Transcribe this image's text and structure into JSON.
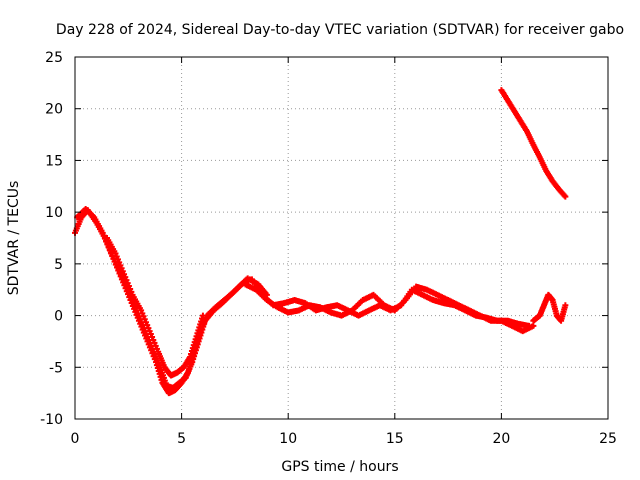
{
  "chart_data": {
    "type": "scatter",
    "title": "Day 228 of 2024, Sidereal Day-to-day VTEC variation (SDTVAR) for receiver gabo",
    "xlabel": "GPS time / hours",
    "ylabel": "SDTVAR / TECUs",
    "xlim": [
      0,
      25
    ],
    "ylim": [
      -10,
      25
    ],
    "xticks": [
      0,
      5,
      10,
      15,
      20,
      25
    ],
    "yticks": [
      -10,
      -5,
      0,
      5,
      10,
      15,
      20,
      25
    ],
    "grid": true,
    "legend": "none",
    "marker": "+",
    "series": [
      {
        "name": "satellite-track-1",
        "color": "#ff0000",
        "x": [
          0.0,
          0.3,
          0.6,
          1.0,
          1.4,
          1.8,
          2.2,
          2.6,
          3.0,
          3.4,
          3.8,
          4.1,
          4.4,
          4.7,
          5.0,
          5.3,
          5.6,
          5.9,
          6.2,
          6.6,
          7.0,
          7.4,
          7.8,
          8.2,
          8.6,
          9.0
        ],
        "y": [
          8.0,
          9.5,
          10.2,
          9.0,
          7.5,
          5.5,
          3.5,
          1.5,
          -0.5,
          -2.5,
          -4.5,
          -6.5,
          -7.5,
          -7.2,
          -6.5,
          -5.5,
          -3.5,
          -1.5,
          0.0,
          0.8,
          1.5,
          2.2,
          3.0,
          3.5,
          3.0,
          2.0
        ]
      },
      {
        "name": "satellite-track-2",
        "color": "#ff0000",
        "x": [
          0.1,
          0.5,
          0.9,
          1.3,
          1.7,
          2.1,
          2.5,
          2.9,
          3.3,
          3.7,
          4.0,
          4.3,
          4.6,
          4.9,
          5.2,
          5.5,
          5.8,
          6.1,
          6.5,
          6.9,
          7.3,
          7.7,
          8.1
        ],
        "y": [
          9.5,
          10.3,
          9.5,
          8.0,
          6.0,
          4.2,
          2.5,
          0.5,
          -1.5,
          -3.5,
          -5.0,
          -6.8,
          -7.0,
          -6.5,
          -6.0,
          -4.5,
          -2.5,
          -0.5,
          0.5,
          1.2,
          2.0,
          2.8,
          3.6
        ]
      },
      {
        "name": "satellite-track-3",
        "color": "#ff0000",
        "x": [
          1.5,
          1.9,
          2.3,
          2.7,
          3.1,
          3.5,
          3.9,
          4.2,
          4.5,
          4.8,
          5.1,
          5.4,
          5.7,
          6.0
        ],
        "y": [
          7.5,
          6.0,
          4.0,
          2.0,
          0.5,
          -1.5,
          -3.5,
          -5.0,
          -5.8,
          -5.5,
          -5.0,
          -4.0,
          -2.0,
          0.0
        ]
      },
      {
        "name": "satellite-track-4",
        "color": "#ff0000",
        "x": [
          8.0,
          8.5,
          9.0,
          9.5,
          10.0,
          10.5,
          11.0,
          11.5,
          12.0,
          12.5,
          13.0,
          13.5,
          14.0,
          14.5,
          15.0,
          15.5,
          16.0,
          16.5,
          17.0,
          17.5,
          18.0,
          18.5,
          19.0,
          19.5,
          20.0,
          20.5,
          21.0,
          21.5
        ],
        "y": [
          3.0,
          2.5,
          1.5,
          0.8,
          0.3,
          0.5,
          1.0,
          0.8,
          0.3,
          0.0,
          0.5,
          1.5,
          2.0,
          1.0,
          0.5,
          1.5,
          2.8,
          2.5,
          2.0,
          1.5,
          1.0,
          0.5,
          0.0,
          -0.5,
          -0.5,
          -1.0,
          -1.5,
          -1.0
        ]
      },
      {
        "name": "satellite-track-5",
        "color": "#ff0000",
        "x": [
          8.3,
          8.8,
          9.3,
          9.8,
          10.3,
          10.8,
          11.3,
          11.8,
          12.3,
          12.8,
          13.3,
          13.8,
          14.3,
          14.8,
          15.3,
          15.8,
          16.3,
          16.8,
          17.3,
          17.8,
          18.3,
          18.8,
          19.3,
          19.8,
          20.3,
          20.8,
          21.3
        ],
        "y": [
          3.5,
          2.0,
          1.0,
          1.2,
          1.5,
          1.2,
          0.5,
          0.8,
          1.0,
          0.5,
          0.0,
          0.5,
          1.0,
          0.5,
          1.0,
          2.5,
          2.0,
          1.5,
          1.2,
          1.0,
          0.5,
          0.0,
          -0.2,
          -0.5,
          -0.5,
          -0.8,
          -1.0
        ]
      },
      {
        "name": "satellite-track-6",
        "color": "#ff0000",
        "x": [
          21.5,
          21.8,
          22.0,
          22.2,
          22.4,
          22.6,
          22.8,
          23.0
        ],
        "y": [
          -0.5,
          0.0,
          1.0,
          2.0,
          1.5,
          0.0,
          -0.5,
          1.0
        ]
      },
      {
        "name": "satellite-track-7",
        "color": "#ff0000",
        "x": [
          20.0,
          20.3,
          20.6,
          20.9,
          21.2,
          21.5,
          21.8,
          22.1,
          22.4,
          22.7,
          23.0
        ],
        "y": [
          21.8,
          20.8,
          19.8,
          18.8,
          17.8,
          16.5,
          15.3,
          14.0,
          13.0,
          12.2,
          11.5
        ]
      }
    ]
  }
}
